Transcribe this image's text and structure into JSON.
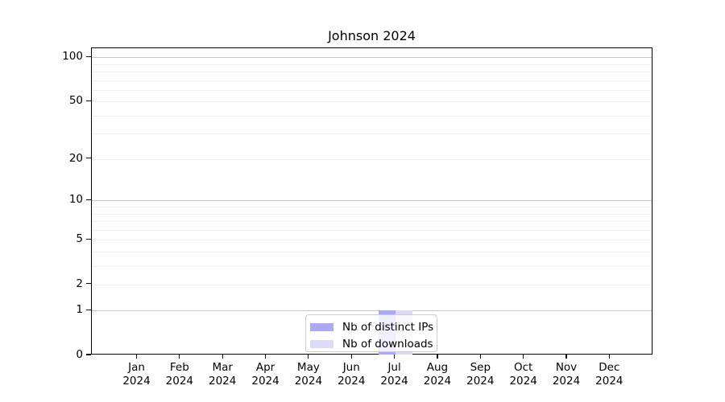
{
  "chart_data": {
    "type": "bar",
    "title": "Johnson 2024",
    "categories": [
      "Jan 2024",
      "Feb 2024",
      "Mar 2024",
      "Apr 2024",
      "May 2024",
      "Jun 2024",
      "Jul 2024",
      "Aug 2024",
      "Sep 2024",
      "Oct 2024",
      "Nov 2024",
      "Dec 2024"
    ],
    "series": [
      {
        "name": "Nb of distinct IPs",
        "color": "#aaaaee",
        "values": [
          0,
          0,
          0,
          0,
          0,
          0,
          1,
          0,
          0,
          0,
          0,
          0
        ]
      },
      {
        "name": "Nb of downloads",
        "color": "#dbdbf5",
        "values": [
          0,
          0,
          0,
          0,
          0,
          0,
          1,
          0,
          0,
          0,
          0,
          0
        ]
      }
    ],
    "xlabel": "",
    "ylabel": "",
    "y_scale": "log1p",
    "ylim": [
      0,
      115
    ],
    "y_major_ticks": [
      0,
      1,
      2,
      5,
      10,
      20,
      50,
      100
    ],
    "y_minor_gridlines": [
      3,
      4,
      6,
      7,
      8,
      9,
      30,
      40,
      60,
      70,
      80,
      90
    ],
    "y_emphasized_gridlines": [
      1,
      10,
      100
    ],
    "grid": "horizontal",
    "legend_position": "bottom-center",
    "colors": {
      "grid_major": "#c6c6c6",
      "grid_minor": "#efefef",
      "axis": "#000000",
      "background": "#ffffff"
    }
  }
}
